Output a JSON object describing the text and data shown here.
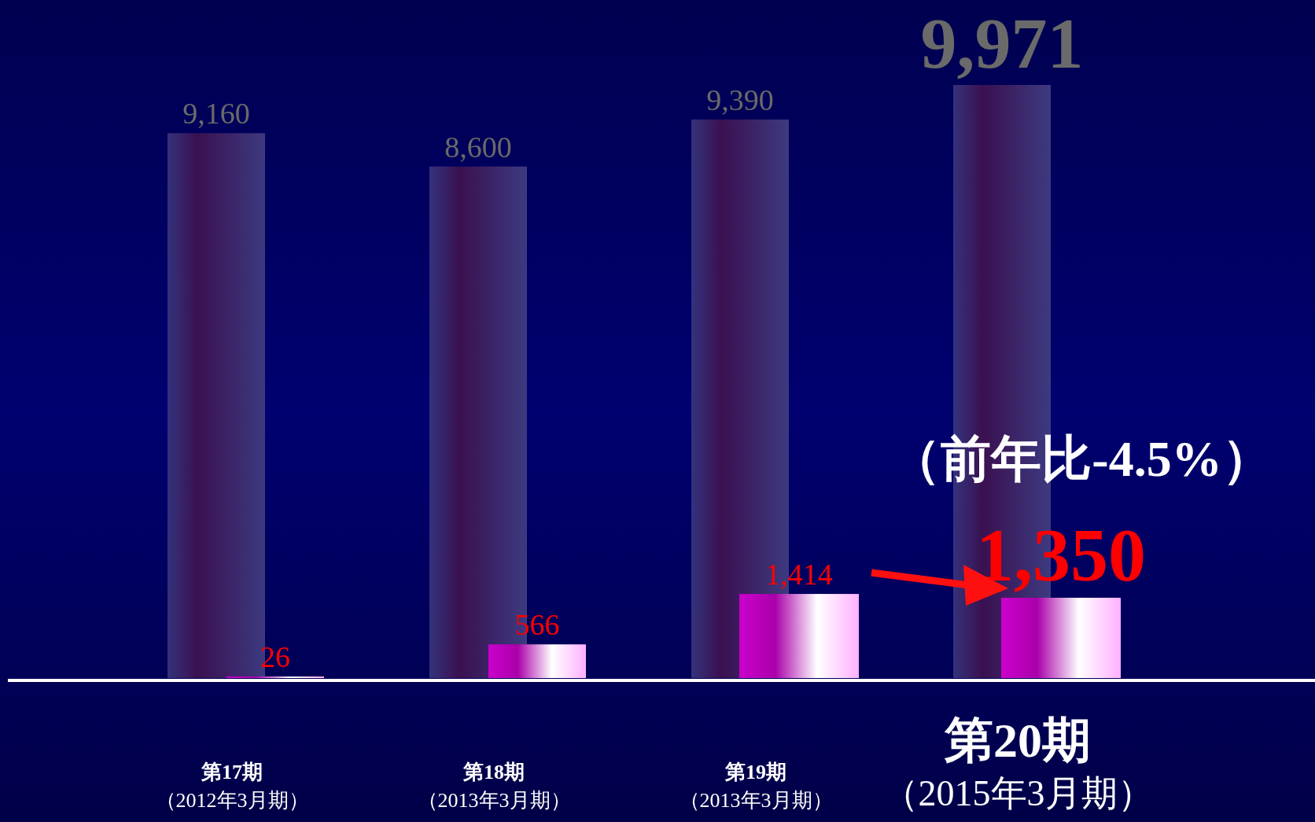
{
  "chart_data": {
    "type": "bar",
    "categories": [
      "第17期（2012年3月期）",
      "第18期（2013年3月期）",
      "第19期（2013年3月期）",
      "第20期（2015年3月期）"
    ],
    "series": [
      {
        "color": "#3d3a80",
        "values": [
          9160,
          8600,
          9390,
          9971
        ],
        "value_labels": [
          "9,160",
          "8,600",
          "9,390",
          "9,971"
        ]
      },
      {
        "color": "#cc00cc",
        "values": [
          26,
          566,
          1414,
          1350
        ],
        "value_labels": [
          "26",
          "566",
          "1,414",
          "1,350"
        ]
      }
    ],
    "annotations": [
      "（前年比-4.5%）"
    ]
  }
}
